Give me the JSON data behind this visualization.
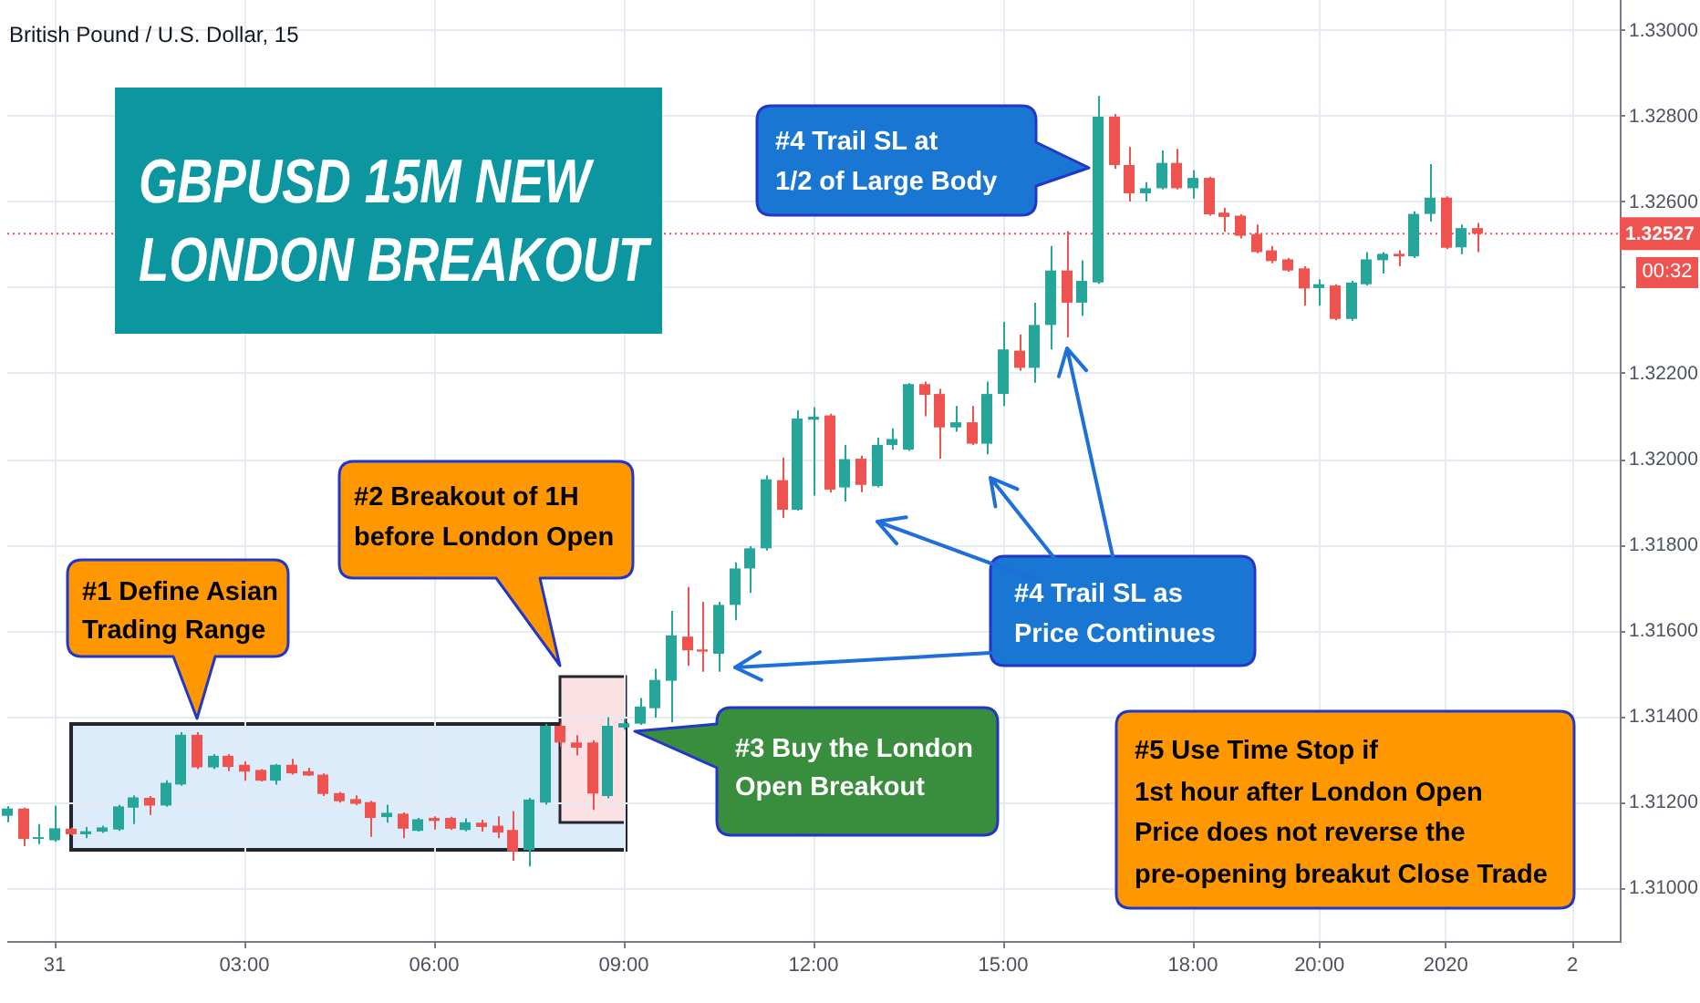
{
  "chart_data": {
    "type": "candlestick",
    "title": "GBPUSD 15M NEW LONDON BREAKOUT",
    "subtitle": "British Pound / U.S. Dollar, 15",
    "categories": [
      null,
      null,
      null,
      "31",
      null,
      null,
      null,
      null,
      null,
      null,
      null,
      null,
      null,
      null,
      null,
      "03:00",
      null,
      null,
      null,
      null,
      null,
      null,
      null,
      null,
      null,
      null,
      null,
      "06:00",
      null,
      null,
      null,
      null,
      null,
      null,
      null,
      null,
      null,
      null,
      null,
      "09:00",
      null,
      null,
      null,
      null,
      null,
      null,
      null,
      null,
      null,
      null,
      null,
      "12:00",
      null,
      null,
      null,
      null,
      null,
      null,
      null,
      null,
      null,
      null,
      null,
      "15:00",
      null,
      null,
      null,
      null,
      null,
      null,
      null,
      null,
      null,
      null,
      null,
      "18:00",
      null,
      null,
      null,
      null,
      null,
      null,
      null,
      "20:00",
      null,
      null,
      null,
      null,
      null,
      null,
      null,
      "2020",
      null,
      null,
      null,
      null,
      null,
      null,
      null,
      "2",
      null,
      null,
      null
    ],
    "ohlc": [
      [
        1.31169,
        1.31191,
        1.31154,
        1.31186
      ],
      [
        1.31186,
        1.31188,
        1.31098,
        1.31115
      ],
      [
        1.31115,
        1.3115,
        1.31103,
        1.31119
      ],
      [
        1.31112,
        1.31193,
        1.31109,
        1.3114
      ],
      [
        1.31139,
        1.31142,
        1.31123,
        1.31126
      ],
      [
        1.31126,
        1.31143,
        1.31117,
        1.31133
      ],
      [
        1.31132,
        1.31146,
        1.31129,
        1.31142
      ],
      [
        1.31137,
        1.31195,
        1.31134,
        1.31191
      ],
      [
        1.31188,
        1.31217,
        1.3115,
        1.31212
      ],
      [
        1.31211,
        1.31215,
        1.31171,
        1.31193
      ],
      [
        1.31193,
        1.31252,
        1.3119,
        1.31246
      ],
      [
        1.31242,
        1.31364,
        1.31239,
        1.31358
      ],
      [
        1.31358,
        1.31364,
        1.31278,
        1.31282
      ],
      [
        1.31282,
        1.31313,
        1.31278,
        1.31309
      ],
      [
        1.31309,
        1.31313,
        1.31273,
        1.31283
      ],
      [
        1.31288,
        1.31296,
        1.31251,
        1.31272
      ],
      [
        1.31276,
        1.31278,
        1.31249,
        1.31251
      ],
      [
        1.31251,
        1.3129,
        1.31242,
        1.31288
      ],
      [
        1.31288,
        1.31302,
        1.31265,
        1.31268
      ],
      [
        1.31273,
        1.31281,
        1.31262,
        1.31263
      ],
      [
        1.31265,
        1.31268,
        1.31215,
        1.3122
      ],
      [
        1.31222,
        1.31225,
        1.312,
        1.31203
      ],
      [
        1.31208,
        1.31217,
        1.31194,
        1.31197
      ],
      [
        1.31201,
        1.31204,
        1.3112,
        1.31164
      ],
      [
        1.31166,
        1.31195,
        1.31153,
        1.31176
      ],
      [
        1.31174,
        1.31177,
        1.31117,
        1.31139
      ],
      [
        1.31134,
        1.31164,
        1.31132,
        1.31161
      ],
      [
        1.31164,
        1.31168,
        1.31137,
        1.31157
      ],
      [
        1.31164,
        1.31167,
        1.31136,
        1.31139
      ],
      [
        1.31136,
        1.31163,
        1.31133,
        1.31154
      ],
      [
        1.31153,
        1.3116,
        1.31132,
        1.31143
      ],
      [
        1.31146,
        1.31168,
        1.31117,
        1.3113
      ],
      [
        1.31136,
        1.3118,
        1.31064,
        1.31086
      ],
      [
        1.31089,
        1.31211,
        1.31051,
        1.31207
      ],
      [
        1.312,
        1.31383,
        1.31195,
        1.31379
      ],
      [
        1.31379,
        1.31385,
        1.3133,
        1.3134
      ],
      [
        1.3134,
        1.31357,
        1.3131,
        1.31328
      ],
      [
        1.3134,
        1.31345,
        1.31183,
        1.31221
      ],
      [
        1.31215,
        1.31399,
        1.3121,
        1.31379
      ],
      [
        1.31375,
        1.31395,
        1.3137,
        1.31385
      ],
      [
        1.31384,
        1.31444,
        1.31381,
        1.31424
      ],
      [
        1.3142,
        1.31512,
        1.31398,
        1.31486
      ],
      [
        1.31484,
        1.31647,
        1.31387,
        1.3159
      ],
      [
        1.31587,
        1.31703,
        1.31519,
        1.31555
      ],
      [
        1.31557,
        1.31668,
        1.31505,
        1.31552
      ],
      [
        1.31547,
        1.31668,
        1.31505,
        1.31661
      ],
      [
        1.31661,
        1.3176,
        1.31625,
        1.31746
      ],
      [
        1.31746,
        1.31798,
        1.31689,
        1.31793
      ],
      [
        1.31793,
        1.31963,
        1.31788,
        1.31954
      ],
      [
        1.31952,
        1.32005,
        1.31864,
        1.31883
      ],
      [
        1.31883,
        1.32115,
        1.31881,
        1.32096
      ],
      [
        1.32093,
        1.32122,
        1.31916,
        1.321
      ],
      [
        1.32103,
        1.32107,
        1.31923,
        1.3193
      ],
      [
        1.31935,
        1.32034,
        1.31902,
        1.32001
      ],
      [
        1.32002,
        1.32009,
        1.31924,
        1.31941
      ],
      [
        1.31938,
        1.32051,
        1.31935,
        1.32034
      ],
      [
        1.32034,
        1.32073,
        1.32023,
        1.32048
      ],
      [
        1.32023,
        1.32178,
        1.3202,
        1.32176
      ],
      [
        1.32176,
        1.32182,
        1.32101,
        1.32151
      ],
      [
        1.32153,
        1.32165,
        1.32002,
        1.32075
      ],
      [
        1.32075,
        1.32125,
        1.32065,
        1.32087
      ],
      [
        1.32087,
        1.32125,
        1.32034,
        1.32037
      ],
      [
        1.32037,
        1.32182,
        1.32012,
        1.32153
      ],
      [
        1.32153,
        1.32321,
        1.32125,
        1.32257
      ],
      [
        1.32254,
        1.32292,
        1.32207,
        1.32214
      ],
      [
        1.32214,
        1.32366,
        1.32179,
        1.32314
      ],
      [
        1.32314,
        1.32498,
        1.32257,
        1.32441
      ],
      [
        1.32441,
        1.32533,
        1.32285,
        1.32366
      ],
      [
        1.32366,
        1.32465,
        1.32335,
        1.32417
      ],
      [
        1.32413,
        1.32848,
        1.3241,
        1.328
      ],
      [
        1.328,
        1.32806,
        1.32678,
        1.32687
      ],
      [
        1.32687,
        1.32729,
        1.32602,
        1.32621
      ],
      [
        1.32621,
        1.32647,
        1.32602,
        1.32633
      ],
      [
        1.32633,
        1.32721,
        1.3263,
        1.32692
      ],
      [
        1.32692,
        1.32725,
        1.3263,
        1.32633
      ],
      [
        1.32633,
        1.32675,
        1.32609,
        1.32657
      ],
      [
        1.32657,
        1.3266,
        1.32569,
        1.32572
      ],
      [
        1.32576,
        1.32587,
        1.32531,
        1.32566
      ],
      [
        1.32569,
        1.32572,
        1.32516,
        1.32522
      ],
      [
        1.32526,
        1.32548,
        1.32481,
        1.32484
      ],
      [
        1.32488,
        1.32498,
        1.32458,
        1.32463
      ],
      [
        1.32467,
        1.3247,
        1.32438,
        1.32441
      ],
      [
        1.32446,
        1.32451,
        1.32359,
        1.32399
      ],
      [
        1.324,
        1.3242,
        1.32359,
        1.32409
      ],
      [
        1.32406,
        1.32409,
        1.32325,
        1.32328
      ],
      [
        1.32328,
        1.32417,
        1.32324,
        1.32413
      ],
      [
        1.32409,
        1.32484,
        1.32406,
        1.32467
      ],
      [
        1.32465,
        1.32484,
        1.32434,
        1.3248
      ],
      [
        1.3248,
        1.32488,
        1.32451,
        1.32474
      ],
      [
        1.32474,
        1.32579,
        1.3247,
        1.32573
      ],
      [
        1.32573,
        1.32689,
        1.32555,
        1.32611
      ],
      [
        1.32611,
        1.32614,
        1.32491,
        1.32494
      ],
      [
        1.32495,
        1.32548,
        1.32479,
        1.3254
      ],
      [
        1.3254,
        1.32552,
        1.32484,
        1.32527
      ],
      null,
      null,
      null,
      null,
      null,
      null,
      null,
      null,
      null
    ],
    "colors": [
      "#26a69a",
      "#ef5350",
      "#26a69a",
      "#26a69a",
      "#ef5350",
      "#26a69a",
      "#26a69a",
      "#26a69a",
      "#26a69a",
      "#ef5350",
      "#26a69a",
      "#26a69a",
      "#ef5350",
      "#26a69a",
      "#ef5350",
      "#ef5350",
      "#ef5350",
      "#26a69a",
      "#ef5350",
      "#ef5350",
      "#ef5350",
      "#ef5350",
      "#ef5350",
      "#ef5350",
      "#26a69a",
      "#ef5350",
      "#26a69a",
      "#ef5350",
      "#ef5350",
      "#26a69a",
      "#ef5350",
      "#ef5350",
      "#ef5350",
      "#26a69a",
      "#26a69a",
      "#ef5350",
      "#ef5350",
      "#ef5350",
      "#26a69a",
      "#26a69a",
      "#26a69a",
      "#26a69a",
      "#26a69a",
      "#ef5350",
      "#ef5350",
      "#26a69a",
      "#26a69a",
      "#26a69a",
      "#26a69a",
      "#ef5350",
      "#26a69a",
      "#26a69a",
      "#ef5350",
      "#26a69a",
      "#ef5350",
      "#26a69a",
      "#26a69a",
      "#26a69a",
      "#ef5350",
      "#ef5350",
      "#26a69a",
      "#ef5350",
      "#26a69a",
      "#26a69a",
      "#ef5350",
      "#26a69a",
      "#26a69a",
      "#ef5350",
      "#26a69a",
      "#26a69a",
      "#ef5350",
      "#ef5350",
      "#26a69a",
      "#26a69a",
      "#ef5350",
      "#26a69a",
      "#ef5350",
      "#ef5350",
      "#ef5350",
      "#ef5350",
      "#ef5350",
      "#ef5350",
      "#ef5350",
      "#26a69a",
      "#ef5350",
      "#26a69a",
      "#26a69a",
      "#26a69a",
      "#ef5350",
      "#26a69a",
      "#26a69a",
      "#ef5350",
      "#26a69a",
      "#ef5350",
      null,
      null,
      null,
      null,
      null,
      null,
      null,
      null,
      null
    ],
    "ylim": [
      1.30877,
      1.33072
    ],
    "yticks": [
      {
        "value": 1.31,
        "label": "1.31000"
      },
      {
        "value": 1.312,
        "label": "1.31200"
      },
      {
        "value": 1.314,
        "label": "1.31400"
      },
      {
        "value": 1.316,
        "label": "1.31600"
      },
      {
        "value": 1.318,
        "label": "1.31800"
      },
      {
        "value": 1.32,
        "label": "1.32000"
      },
      {
        "value": 1.322,
        "label": "1.32200"
      },
      {
        "value": 1.324,
        "label": null
      },
      {
        "value": 1.326,
        "label": "1.32600"
      },
      {
        "value": 1.328,
        "label": "1.32800"
      },
      {
        "value": 1.33,
        "label": "1.33000"
      }
    ],
    "ref_lines": [
      {
        "axis": "y",
        "value": 1.32527,
        "label": "1.32527",
        "color": "#ef5350",
        "line_style": "dotted"
      }
    ],
    "grid": true,
    "annotations": [
      "#1 Define Asian\nTrading Range",
      "#2 Breakout of 1H\nbefore London Open",
      "#3 Buy the London\nOpen Breakout",
      "#4 Trail SL at\n1/2 of Large Body",
      "#4 Trail SL as\nPrice Continues",
      "#5 Use Time Stop if\n1st hour after London Open\nPrice does not reverse the\npre-opening breakut Close Trade",
      "00:32"
    ]
  }
}
